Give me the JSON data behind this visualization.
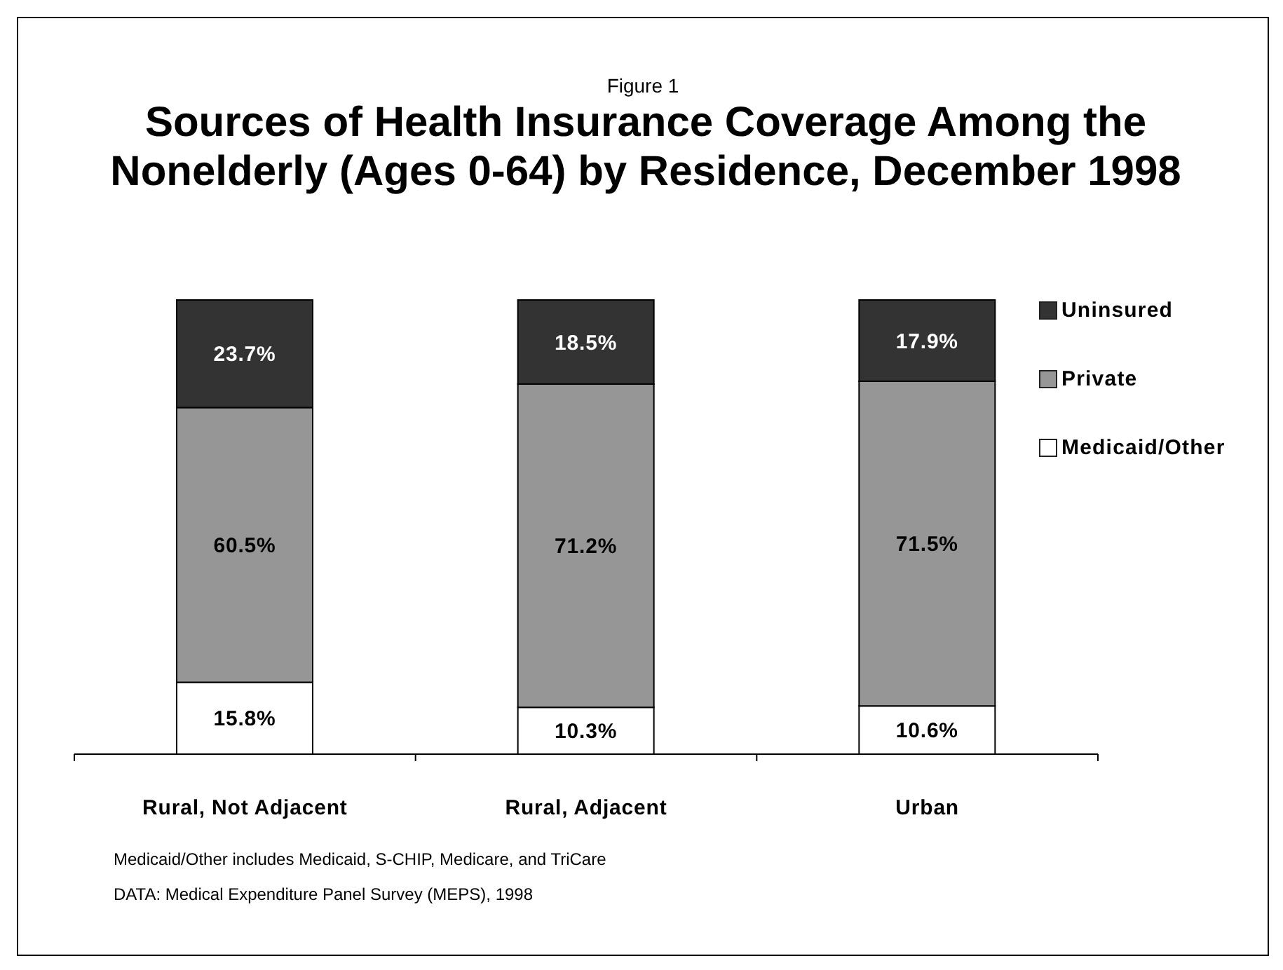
{
  "chart_data": {
    "type": "bar",
    "stacked": true,
    "subtitle": "Figure 1",
    "title": "Sources of Health Insurance Coverage Among the Nonelderly (Ages 0-64) by Residence, December 1998",
    "categories": [
      "Rural, Not Adjacent",
      "Rural, Adjacent",
      "Urban"
    ],
    "series": [
      {
        "name": "Medicaid/Other",
        "color": "#ffffff",
        "values": [
          15.8,
          10.3,
          10.6
        ],
        "value_labels": [
          "15.8%",
          "10.3%",
          "10.6%"
        ]
      },
      {
        "name": "Private",
        "color": "#969696",
        "values": [
          60.5,
          71.2,
          71.5
        ],
        "value_labels": [
          "60.5%",
          "71.2%",
          "71.5%"
        ]
      },
      {
        "name": "Uninsured",
        "color": "#333333",
        "values": [
          23.7,
          18.5,
          17.9
        ],
        "value_labels": [
          "23.7%",
          "18.5%",
          "17.9%"
        ]
      }
    ],
    "legend": "top right",
    "annotations": [
      "Medicaid/Other includes Medicaid, S-CHIP, Medicare, and TriCare",
      "DATA: Medical Expenditure Panel Survey (MEPS), 1998"
    ]
  }
}
